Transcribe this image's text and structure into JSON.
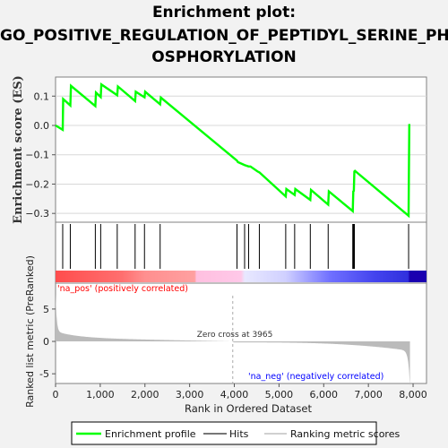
{
  "title_lines": [
    "Enrichment plot:",
    "GO_POSITIVE_REGULATION_OF_PEPTIDYL_SERINE_PH",
    "OSPHORYLATION"
  ],
  "chart_data": {
    "type": "line",
    "title": "Enrichment plot: GO_POSITIVE_REGULATION_OF_PEPTIDYL_SERINE_PHOSPHORYLATION",
    "xlabel": "Rank in Ordered Dataset",
    "es_ylabel": "Enrichment score (ES)",
    "metric_ylabel": "Ranked list metric (PreRanked)",
    "xlim": [
      0,
      8300
    ],
    "es_ylim": [
      -0.33,
      0.165
    ],
    "metric_ylim": [
      -6.5,
      9
    ],
    "x_ticks": [
      0,
      1000,
      2000,
      3000,
      4000,
      5000,
      6000,
      7000,
      8000
    ],
    "x_tick_labels": [
      "0",
      "1,000",
      "2,000",
      "3,000",
      "4,000",
      "5,000",
      "6,000",
      "7,000",
      "8,000"
    ],
    "es_ticks": [
      0.1,
      0.0,
      -0.1,
      -0.2,
      -0.3
    ],
    "es_tick_labels": [
      "0.1",
      "0.0",
      "−0.1",
      "−0.2",
      "−0.3"
    ],
    "metric_ticks": [
      5,
      0,
      -5
    ],
    "metric_tick_labels": [
      "5",
      "0",
      "-5"
    ],
    "series": [
      {
        "name": "Enrichment profile",
        "color": "#00ff00",
        "points": [
          [
            0,
            0.0
          ],
          [
            160,
            -0.015
          ],
          [
            170,
            0.09
          ],
          [
            330,
            0.068
          ],
          [
            345,
            0.135
          ],
          [
            890,
            0.066
          ],
          [
            905,
            0.112
          ],
          [
            1010,
            0.097
          ],
          [
            1025,
            0.14
          ],
          [
            1380,
            0.103
          ],
          [
            1395,
            0.133
          ],
          [
            1780,
            0.083
          ],
          [
            1795,
            0.115
          ],
          [
            1990,
            0.096
          ],
          [
            2005,
            0.115
          ],
          [
            2340,
            0.072
          ],
          [
            2355,
            0.095
          ],
          [
            4060,
            -0.12
          ],
          [
            4080,
            -0.125
          ],
          [
            4230,
            -0.135
          ],
          [
            4320,
            -0.14
          ],
          [
            4360,
            -0.14
          ],
          [
            4520,
            -0.157
          ],
          [
            4560,
            -0.16
          ],
          [
            5150,
            -0.242
          ],
          [
            5165,
            -0.217
          ],
          [
            5350,
            -0.237
          ],
          [
            5365,
            -0.217
          ],
          [
            5700,
            -0.254
          ],
          [
            5715,
            -0.22
          ],
          [
            6100,
            -0.27
          ],
          [
            6115,
            -0.225
          ],
          [
            6650,
            -0.292
          ],
          [
            6662,
            -0.225
          ],
          [
            6675,
            -0.223
          ],
          [
            6687,
            -0.157
          ],
          [
            6700,
            -0.155
          ],
          [
            7900,
            -0.308
          ],
          [
            7915,
            0.005
          ]
        ]
      }
    ],
    "hits": [
      160,
      330,
      890,
      1010,
      1380,
      1780,
      1990,
      2340,
      4060,
      4230,
      4320,
      4560,
      5150,
      5350,
      5700,
      6100,
      6650,
      6662,
      6675,
      6687,
      7900
    ],
    "hit_legend": "Hits",
    "metric_legend": "Ranking metric scores",
    "metric_color": "#bbbbbb",
    "zero_cross_rank": 3965,
    "zero_cross_label": "Zero cross at 3965",
    "pos_label": "'na_pos' (positively correlated)",
    "neg_label": "'na_neg' (negatively correlated)",
    "pos_label_color": "#ff0000",
    "neg_label_color": "#0000ff",
    "n_ranks": 7930
  }
}
